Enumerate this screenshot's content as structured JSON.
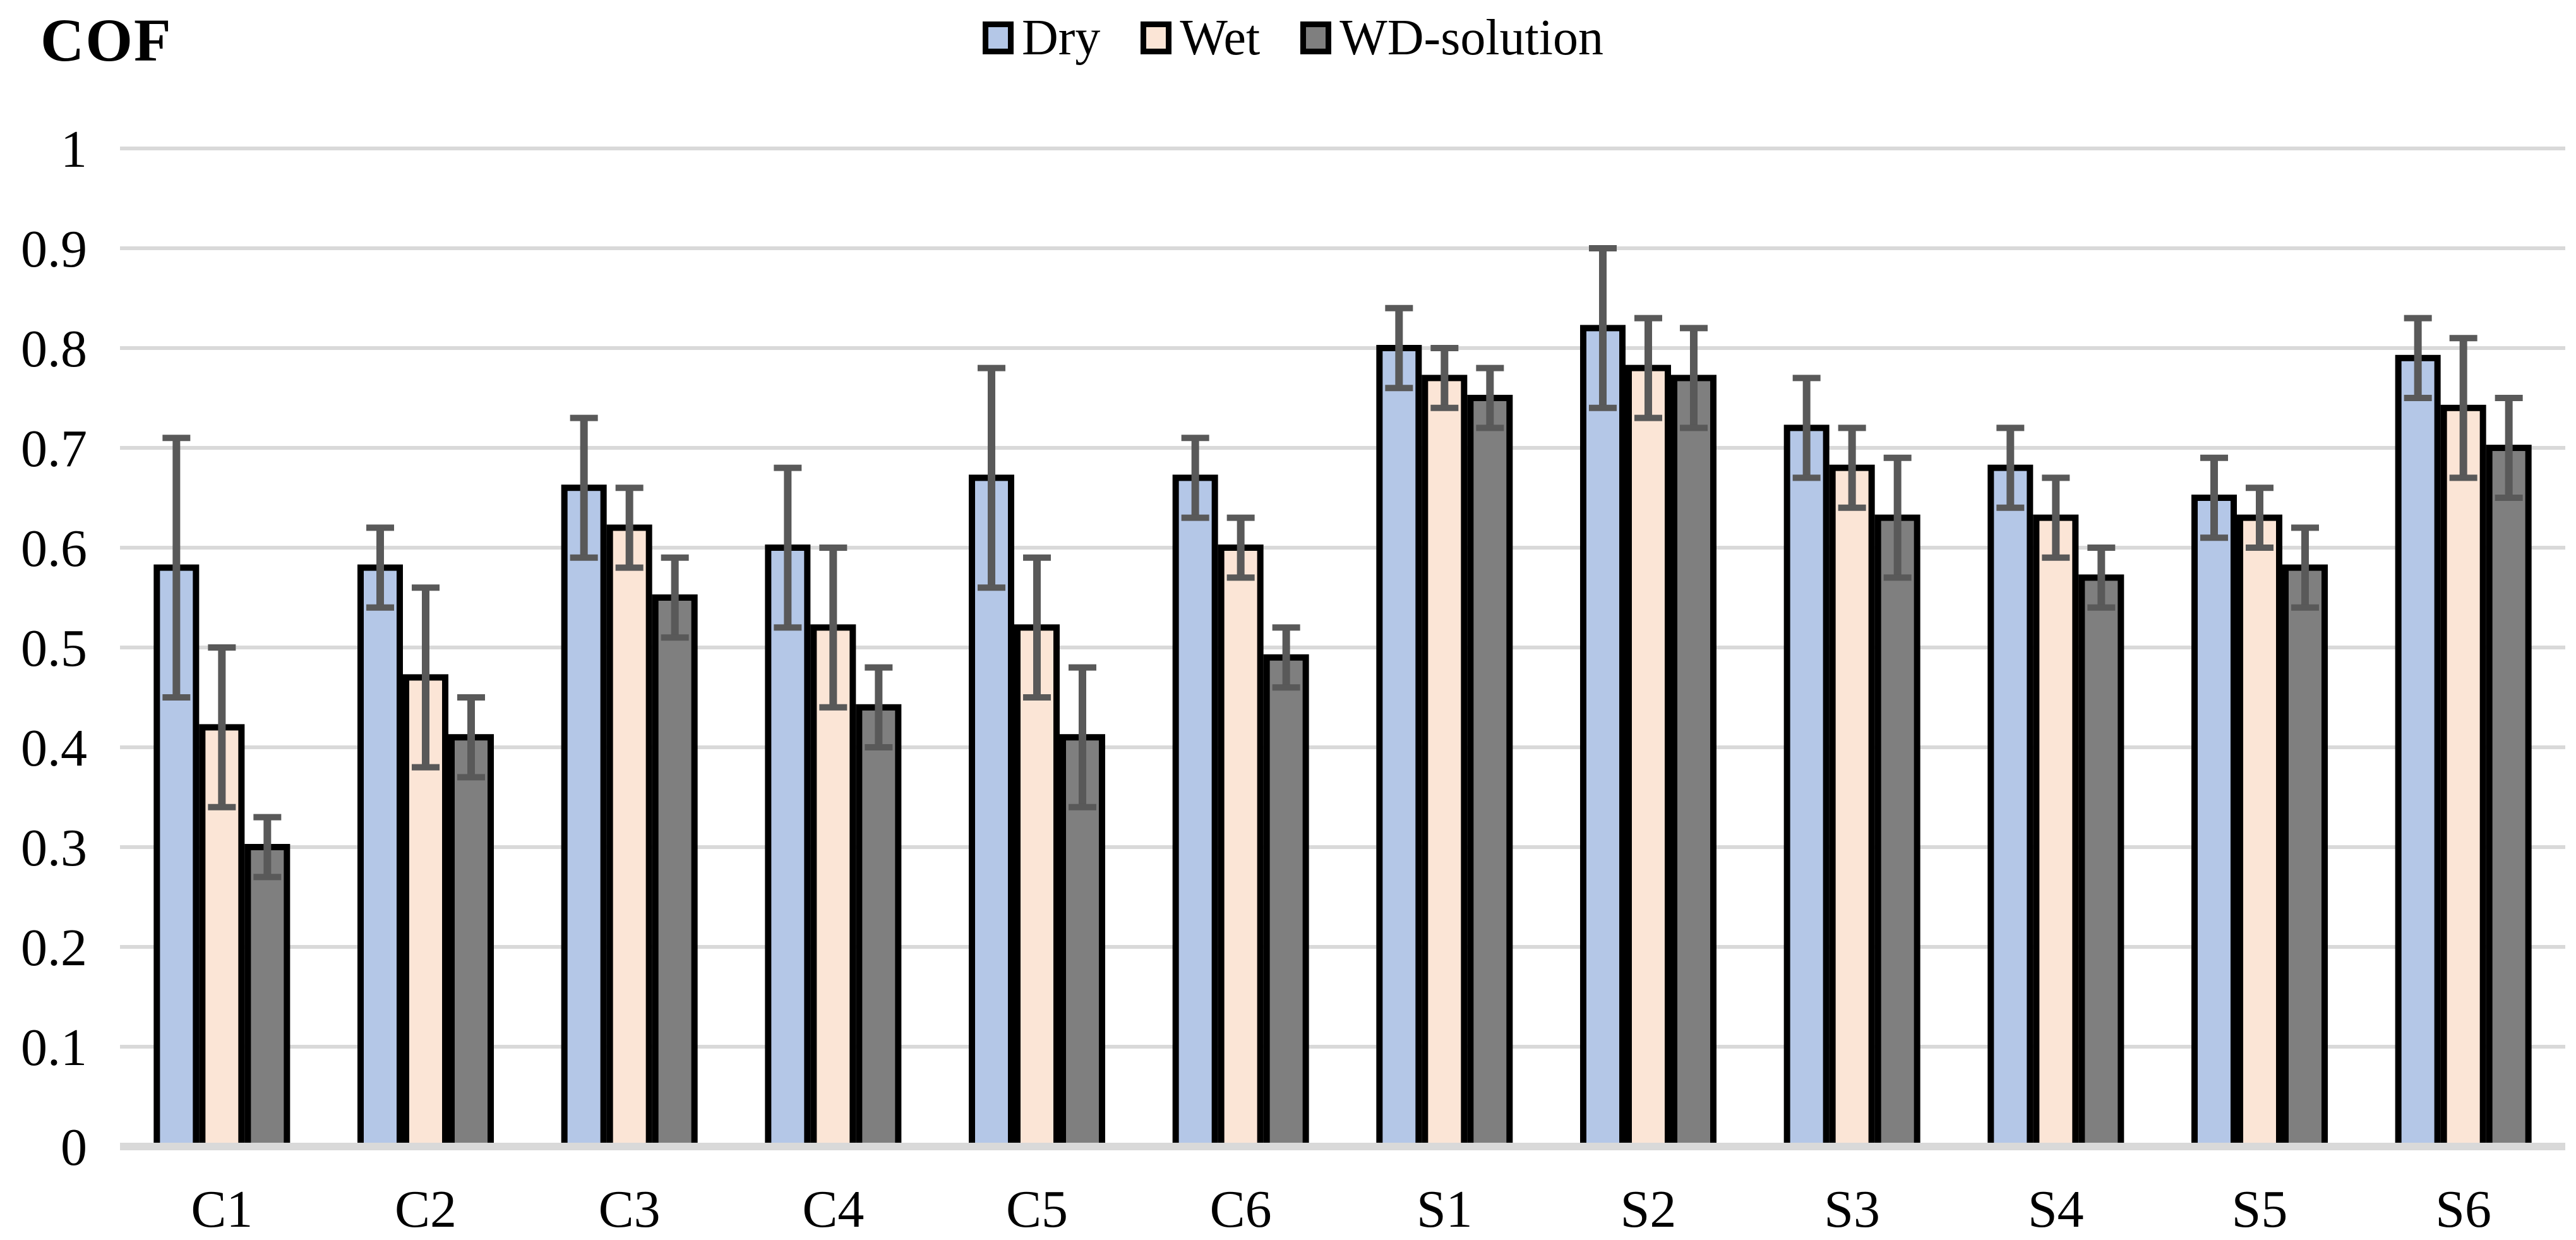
{
  "chart_data": {
    "type": "bar",
    "title": "COF",
    "xlabel": "",
    "ylabel": "COF",
    "categories": [
      "C1",
      "C2",
      "C3",
      "C4",
      "C5",
      "C6",
      "S1",
      "S2",
      "S3",
      "S4",
      "S5",
      "S6"
    ],
    "series": [
      {
        "name": "Dry",
        "color": "#B4C7E7",
        "values": [
          0.58,
          0.58,
          0.66,
          0.6,
          0.67,
          0.67,
          0.8,
          0.82,
          0.72,
          0.68,
          0.65,
          0.79
        ],
        "errors": [
          0.13,
          0.04,
          0.07,
          0.08,
          0.11,
          0.04,
          0.04,
          0.08,
          0.05,
          0.04,
          0.04,
          0.04
        ]
      },
      {
        "name": "Wet",
        "color": "#FBE5D6",
        "values": [
          0.42,
          0.47,
          0.62,
          0.52,
          0.52,
          0.6,
          0.77,
          0.78,
          0.68,
          0.63,
          0.63,
          0.74
        ],
        "errors": [
          0.08,
          0.09,
          0.04,
          0.08,
          0.07,
          0.03,
          0.03,
          0.05,
          0.04,
          0.04,
          0.03,
          0.07
        ]
      },
      {
        "name": "WD-solution",
        "color": "#7F7F7F",
        "values": [
          0.3,
          0.41,
          0.55,
          0.44,
          0.41,
          0.49,
          0.75,
          0.77,
          0.63,
          0.57,
          0.58,
          0.7
        ],
        "errors": [
          0.03,
          0.04,
          0.04,
          0.04,
          0.07,
          0.03,
          0.03,
          0.05,
          0.06,
          0.03,
          0.04,
          0.05
        ]
      }
    ],
    "ylim": [
      0,
      1
    ],
    "yticks": [
      0,
      0.1,
      0.2,
      0.3,
      0.4,
      0.5,
      0.6,
      0.7,
      0.8,
      0.9,
      1
    ],
    "grid": true,
    "legend_position": "top-center",
    "colors": {
      "gridline": "#D9D9D9",
      "axis_line": "#D9D9D9",
      "error_bar": "#595959",
      "bar_border": "#000000",
      "text": "#000000"
    }
  }
}
